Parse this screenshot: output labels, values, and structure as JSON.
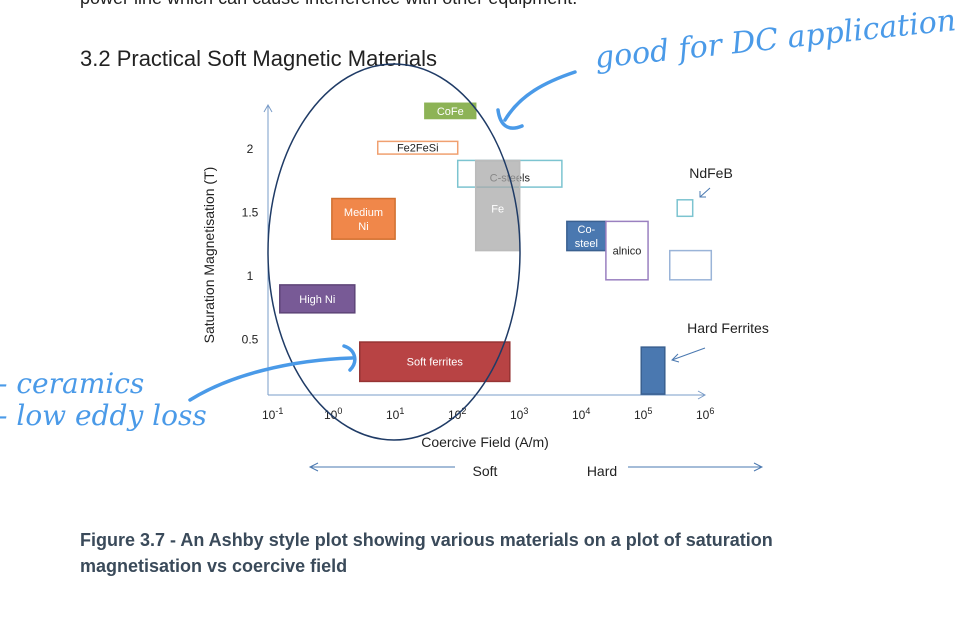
{
  "document": {
    "top_line": "power line which can cause interference with other equipment.",
    "heading": "3.2   Practical Soft Magnetic Materials",
    "caption": "Figure 3.7 - An Ashby style plot showing various materials on a plot of saturation magnetisation vs coercive field"
  },
  "annotations": {
    "note_top": "good for DC application",
    "note_left_1": "- ceramics",
    "note_left_2": "- low eddy loss"
  },
  "chart_data": {
    "type": "ashby",
    "xlabel": "Coercive Field (A/m)",
    "ylabel": "Saturation Magnetisation (T)",
    "xscale": "log",
    "xticks": [
      "10-1",
      "100",
      "101",
      "102",
      "103",
      "104",
      "105",
      "106"
    ],
    "xtick_exponents": [
      -1,
      0,
      1,
      2,
      3,
      4,
      5,
      6
    ],
    "yticks": [
      0.5,
      1,
      1.5,
      2
    ],
    "ytick_labels": [
      "0.5",
      "1",
      "1.5",
      "2"
    ],
    "direction_labels": {
      "soft": "Soft",
      "hard": "Hard"
    },
    "materials": [
      {
        "name": "CoFe",
        "logH": [
          1.53,
          2.35
        ],
        "Bs": [
          2.24,
          2.36
        ],
        "fill": "#8db356",
        "text": "#ffffff",
        "border": "#8db356"
      },
      {
        "name": "Fe2FeSi",
        "logH": [
          0.77,
          2.06
        ],
        "Bs": [
          1.96,
          2.06
        ],
        "fill": "#ffffff",
        "text": "#222222",
        "border": "#f0a070"
      },
      {
        "name": "C-steels",
        "logH": [
          2.06,
          3.74
        ],
        "Bs": [
          1.7,
          1.91
        ],
        "fill": "#ffffff",
        "text": "#222222",
        "border": "#7cc4d0"
      },
      {
        "name": "Fe",
        "logH": [
          2.35,
          3.06
        ],
        "Bs": [
          1.2,
          1.91
        ],
        "fill": "rgba(170,170,170,0.75)",
        "text": "#ffffff",
        "border": "#bbbbbb"
      },
      {
        "name": "Medium Ni",
        "logH": [
          0.03,
          1.05
        ],
        "Bs": [
          1.29,
          1.61
        ],
        "fill": "#f0874a",
        "text": "#ffffff",
        "border": "#d07030"
      },
      {
        "name": "High Ni",
        "logH": [
          -0.81,
          0.4
        ],
        "Bs": [
          0.71,
          0.93
        ],
        "fill": "#785a96",
        "text": "#ffffff",
        "border": "#5e4578"
      },
      {
        "name": "Soft ferrites",
        "logH": [
          0.48,
          2.9
        ],
        "Bs": [
          0.17,
          0.48
        ],
        "fill": "#b84344",
        "text": "#ffffff",
        "border": "#963434"
      },
      {
        "name": "Co-steel",
        "logH": [
          3.82,
          4.45
        ],
        "Bs": [
          1.2,
          1.43
        ],
        "fill": "#4a78b0",
        "text": "#ffffff",
        "border": "#3a6090"
      },
      {
        "name": "alnico",
        "logH": [
          4.45,
          5.13
        ],
        "Bs": [
          0.97,
          1.43
        ],
        "fill": "#ffffff",
        "text": "#222222",
        "border": "#9a80c0"
      },
      {
        "name": "NdFeB",
        "logH": [
          5.6,
          5.85
        ],
        "Bs": [
          1.47,
          1.6
        ],
        "fill": "#ffffff",
        "text": "#222222",
        "border": "#7cc4d0"
      },
      {
        "name": "",
        "logH": [
          5.48,
          6.15
        ],
        "Bs": [
          0.97,
          1.2
        ],
        "fill": "#ffffff",
        "text": "#222222",
        "border": "#9ab4d8"
      },
      {
        "name": "Hard Ferrites",
        "logH": [
          5.02,
          5.4
        ],
        "Bs": [
          0.07,
          0.44
        ],
        "fill": "#4a78b0",
        "text": "#ffffff",
        "border": "#3a6090"
      }
    ],
    "callouts": {
      "NdFeB": "NdFeB",
      "Hard Ferrites": "Hard Ferrites"
    }
  }
}
